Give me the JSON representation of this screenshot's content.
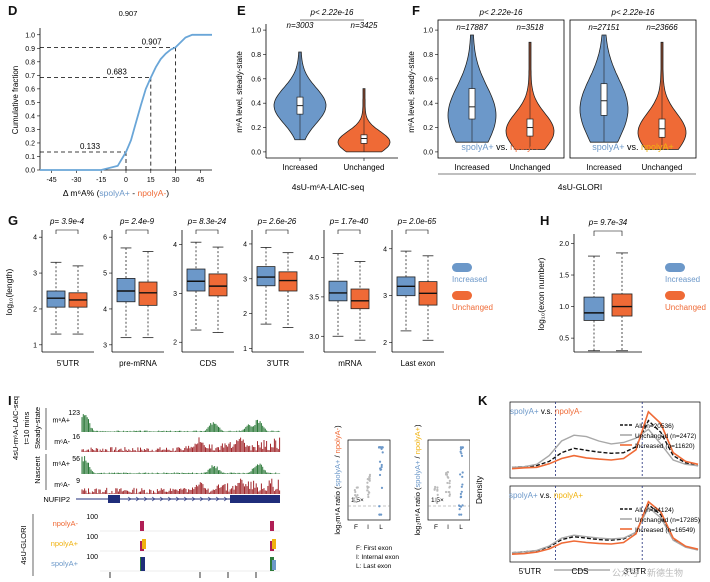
{
  "colors": {
    "blue": "#6c98c9",
    "orange": "#ef6a36",
    "yellow": "#f0b20f",
    "green": "#2d7a3a",
    "darkred": "#a2282c",
    "navy": "#1f2d7a",
    "gray": "#a8a8a8",
    "magenta": "#b01f55",
    "cdf": "#6aa6d8"
  },
  "panel_letters": {
    "d": "D",
    "e": "E",
    "f": "F",
    "g": "G",
    "h": "H",
    "i": "I",
    "k": "K"
  },
  "panel_d": {
    "top_text": "0.907",
    "ylabel": "Cumulative fraction",
    "xlabel_prefix": "Δ m⁶A% (",
    "xlabel_a": "spolyA+",
    "xlabel_sep": " - ",
    "xlabel_b": "npolyA-",
    "xlabel_suffix": ")",
    "annotations": [
      "0.907",
      "0.683",
      "0.133"
    ]
  },
  "panel_e": {
    "p_text": "p< 2.22e-16",
    "n_labels": [
      "n=3003",
      "n=3425"
    ],
    "ylabel": "m⁶A level, steady-state",
    "categories": [
      "Increased",
      "Unchanged"
    ],
    "title": "4sU-m⁶A-LAIC-seq"
  },
  "panel_f": {
    "p_texts": [
      "p< 2.22e-16",
      "p< 2.22e-16"
    ],
    "n_labels": [
      "n=17887",
      "n=3518",
      "n=27151",
      "n=23666"
    ],
    "ylabel": "m⁶A level, steady-state",
    "legend_a": [
      "spolyA+",
      " vs. ",
      "npolyA-"
    ],
    "legend_b": [
      "spolyA+",
      " vs. ",
      "npolyA+"
    ],
    "categories": [
      "Increased",
      "Unchanged",
      "Increased",
      "Unchanged"
    ],
    "title": "4sU-GLORI"
  },
  "panel_g": {
    "ylabel": "log₁₀(length)",
    "legend": [
      "Increased",
      "Unchanged"
    ]
  },
  "panel_h": {
    "ylabel": "log₁₀(exon number)",
    "legend": [
      "Increased",
      "Unchanged"
    ]
  },
  "panel_i": {
    "group_laic": "4sU-m⁶A-LAIC-seq",
    "group_t": "t=10 mins",
    "steady": "Steady-state",
    "nascent": "Nascent",
    "track_labels": [
      "m⁶A+",
      "m⁶A-",
      "m⁶A+",
      "m⁶A-"
    ],
    "track_scales": [
      "123",
      "16",
      "56",
      "9"
    ],
    "gene": "NUFIP2",
    "glori_label": "4sU-GLORI",
    "glori_tracks": [
      "npolyA-",
      "npolyA+",
      "spolyA+"
    ],
    "glori_scales": [
      "100",
      "100",
      "100"
    ],
    "ratio_ylabel_a": [
      "log₂m⁶A ratio (",
      "spolyA+",
      " / ",
      "npolyA-",
      ")"
    ],
    "ratio_ylabel_b": [
      "log₂m⁶A ratio (",
      "spolyA+",
      " / ",
      "npolyA+",
      ")"
    ],
    "fold_text": "1.5×",
    "exon_ticks": [
      "F",
      "I",
      "L"
    ],
    "exon_key": [
      "F: First exon",
      "I: Internal exon",
      "L: Last exon"
    ]
  },
  "panel_k": {
    "ylabel": "Density",
    "title_a": [
      "spolyA+",
      " v.s. ",
      "npolyA-"
    ],
    "title_b": [
      "spolyA+",
      " v.s. ",
      "npolyA+"
    ],
    "legend_a": [
      "All (n=20536)",
      "Unchanged (n=2472)",
      "Increased (n=11620)"
    ],
    "legend_b": [
      "All (n=64124)",
      "Unchanged (n=17285)",
      "Increased (n=16549)"
    ],
    "regions": [
      "5'UTR",
      "CDS",
      "3'UTR"
    ]
  },
  "watermark": "公众号 · 新德生物",
  "chart_data": [
    {
      "panel": "D",
      "type": "line",
      "xlabel": "Δ m⁶A% (spolyA+ - npolyA-)",
      "ylabel": "Cumulative fraction",
      "xlim": [
        -52,
        52
      ],
      "ylim": [
        0,
        1.05
      ],
      "x_ticks": [
        -45,
        -30,
        -15,
        0,
        15,
        30,
        45
      ],
      "y_ticks": [
        0.0,
        0.1,
        0.2,
        0.3,
        0.4,
        0.5,
        0.6,
        0.7,
        0.8,
        0.9,
        1.0
      ],
      "x": [
        -52,
        -15,
        -5,
        0,
        3,
        6,
        9,
        12,
        15,
        18,
        21,
        24,
        27,
        30,
        36,
        40,
        52
      ],
      "y": [
        0.0,
        0.0,
        0.03,
        0.133,
        0.22,
        0.35,
        0.48,
        0.6,
        0.683,
        0.76,
        0.82,
        0.86,
        0.89,
        0.907,
        0.98,
        1.0,
        1.0
      ],
      "reference_lines": [
        {
          "x": 0,
          "y": 0.133
        },
        {
          "x": 15,
          "y": 0.683
        },
        {
          "x": 30,
          "y": 0.907
        }
      ]
    },
    {
      "panel": "E",
      "type": "violin",
      "categories": [
        "Increased",
        "Unchanged"
      ],
      "ylim": [
        -0.05,
        1.05
      ],
      "y_ticks": [
        0.0,
        0.2,
        0.4,
        0.6,
        0.8,
        1.0
      ],
      "series": [
        {
          "name": "Increased",
          "median": 0.38,
          "q1": 0.31,
          "q3": 0.45,
          "min": 0.1,
          "max": 0.82,
          "mode": 0.38
        },
        {
          "name": "Unchanged",
          "median": 0.11,
          "q1": 0.07,
          "q3": 0.14,
          "min": 0.0,
          "max": 0.52,
          "mode": 0.08
        }
      ]
    },
    {
      "panel": "F",
      "type": "violin",
      "categories": [
        "Increased",
        "Unchanged",
        "Increased",
        "Unchanged"
      ],
      "ylim": [
        -0.05,
        1.05
      ],
      "y_ticks": [
        0.0,
        0.2,
        0.4,
        0.6,
        0.8,
        1.0
      ],
      "series": [
        {
          "name": "Increased",
          "median": 0.37,
          "q1": 0.27,
          "q3": 0.52,
          "min": 0.08,
          "max": 0.96,
          "mode": 0.3
        },
        {
          "name": "Unchanged",
          "median": 0.2,
          "q1": 0.13,
          "q3": 0.27,
          "min": 0.02,
          "max": 0.9,
          "mode": 0.17
        },
        {
          "name": "Increased",
          "median": 0.42,
          "q1": 0.3,
          "q3": 0.56,
          "min": 0.08,
          "max": 0.96,
          "mode": 0.35
        },
        {
          "name": "Unchanged",
          "median": 0.19,
          "q1": 0.12,
          "q3": 0.27,
          "min": 0.02,
          "max": 0.9,
          "mode": 0.16
        }
      ]
    },
    {
      "panel": "G",
      "type": "box",
      "ylabel": "log₁₀(length)",
      "subplots": [
        {
          "category": "5'UTR",
          "p": "p= 3.9e-4",
          "ylim": [
            0.8,
            4.2
          ],
          "y_ticks": [
            1,
            2,
            3,
            4
          ],
          "boxes": [
            {
              "min": 1.3,
              "q1": 2.05,
              "med": 2.3,
              "q3": 2.5,
              "max": 3.3
            },
            {
              "min": 1.3,
              "q1": 2.05,
              "med": 2.25,
              "q3": 2.45,
              "max": 3.2
            }
          ]
        },
        {
          "category": "pre-mRNA",
          "p": "p= 2.4e-9",
          "ylim": [
            2.8,
            6.2
          ],
          "y_ticks": [
            3,
            4,
            5,
            6
          ],
          "boxes": [
            {
              "min": 3.2,
              "q1": 4.2,
              "med": 4.5,
              "q3": 4.85,
              "max": 5.7
            },
            {
              "min": 3.2,
              "q1": 4.1,
              "med": 4.45,
              "q3": 4.75,
              "max": 5.6
            }
          ]
        },
        {
          "category": "CDS",
          "p": "p= 8.3e-24",
          "ylim": [
            1.8,
            4.3
          ],
          "y_ticks": [
            2,
            3,
            4
          ],
          "boxes": [
            {
              "min": 2.25,
              "q1": 3.05,
              "med": 3.25,
              "q3": 3.5,
              "max": 4.05
            },
            {
              "min": 2.2,
              "q1": 2.95,
              "med": 3.15,
              "q3": 3.4,
              "max": 3.95
            }
          ]
        },
        {
          "category": "3'UTR",
          "p": "p= 2.6e-26",
          "ylim": [
            0.9,
            4.4
          ],
          "y_ticks": [
            1,
            2,
            3,
            4
          ],
          "boxes": [
            {
              "min": 1.7,
              "q1": 2.8,
              "med": 3.05,
              "q3": 3.35,
              "max": 3.9
            },
            {
              "min": 1.6,
              "q1": 2.65,
              "med": 2.95,
              "q3": 3.2,
              "max": 3.75
            }
          ]
        },
        {
          "category": "mRNA",
          "p": "p= 1.7e-40",
          "ylim": [
            2.8,
            4.35
          ],
          "y_ticks": [
            3.0,
            3.5,
            4.0
          ],
          "boxes": [
            {
              "min": 3.0,
              "q1": 3.45,
              "med": 3.55,
              "q3": 3.7,
              "max": 4.05
            },
            {
              "min": 2.95,
              "q1": 3.35,
              "med": 3.45,
              "q3": 3.6,
              "max": 3.95
            }
          ]
        },
        {
          "category": "Last exon",
          "p": "p= 2.0e-65",
          "ylim": [
            1.8,
            4.4
          ],
          "y_ticks": [
            2,
            3,
            4
          ],
          "boxes": [
            {
              "min": 2.25,
              "q1": 3.0,
              "med": 3.2,
              "q3": 3.4,
              "max": 3.95
            },
            {
              "min": 2.05,
              "q1": 2.8,
              "med": 3.05,
              "q3": 3.3,
              "max": 3.85
            }
          ]
        }
      ]
    },
    {
      "panel": "H",
      "type": "box",
      "ylabel": "log₁₀(exon number)",
      "p": "p= 9.7e-34",
      "ylim": [
        0.28,
        2.15
      ],
      "y_ticks": [
        0.5,
        1.0,
        1.5,
        2.0
      ],
      "boxes": [
        {
          "min": 0.3,
          "q1": 0.78,
          "med": 0.9,
          "q3": 1.15,
          "max": 1.8
        },
        {
          "min": 0.3,
          "q1": 0.85,
          "med": 1.0,
          "q3": 1.2,
          "max": 1.85
        }
      ],
      "categories": [
        "Increased",
        "Unchanged"
      ]
    },
    {
      "panel": "K",
      "type": "line",
      "ylabel": "Density",
      "x_ticks": [
        "5'UTR",
        "CDS",
        "3'UTR"
      ],
      "subplots": [
        {
          "title": "spolyA+ v.s. npolyA-",
          "series": [
            {
              "name": "All (n=20536)",
              "values": [
                0.3,
                0.32,
                0.36,
                0.5,
                0.8,
                0.95,
                0.88,
                0.82,
                0.78,
                0.8,
                1.0,
                1.9,
                1.5,
                0.7,
                0.45,
                0.35
              ]
            },
            {
              "name": "Unchanged (n=2472)",
              "values": [
                0.3,
                0.32,
                0.4,
                0.7,
                1.2,
                1.4,
                1.35,
                1.2,
                1.1,
                1.15,
                1.3,
                1.6,
                1.1,
                0.55,
                0.4,
                0.35
              ]
            },
            {
              "name": "Increased (n=11620)",
              "values": [
                0.25,
                0.28,
                0.3,
                0.42,
                0.6,
                0.7,
                0.62,
                0.58,
                0.55,
                0.6,
                0.9,
                2.2,
                1.8,
                0.8,
                0.5,
                0.4
              ]
            }
          ]
        },
        {
          "title": "spolyA+ v.s. npolyA+",
          "series": [
            {
              "name": "All (n=64124)",
              "values": [
                0.25,
                0.28,
                0.32,
                0.45,
                0.7,
                0.8,
                0.75,
                0.7,
                0.68,
                0.72,
                0.95,
                1.9,
                1.55,
                0.7,
                0.45,
                0.35
              ]
            },
            {
              "name": "Unchanged (n=17285)",
              "values": [
                0.25,
                0.28,
                0.33,
                0.48,
                0.75,
                0.85,
                0.8,
                0.75,
                0.72,
                0.75,
                0.95,
                1.8,
                1.45,
                0.68,
                0.44,
                0.34
              ]
            },
            {
              "name": "Increased (n=16549)",
              "values": [
                0.2,
                0.22,
                0.27,
                0.38,
                0.58,
                0.65,
                0.6,
                0.57,
                0.55,
                0.6,
                0.9,
                2.0,
                1.65,
                0.75,
                0.47,
                0.37
              ]
            }
          ]
        }
      ]
    }
  ]
}
